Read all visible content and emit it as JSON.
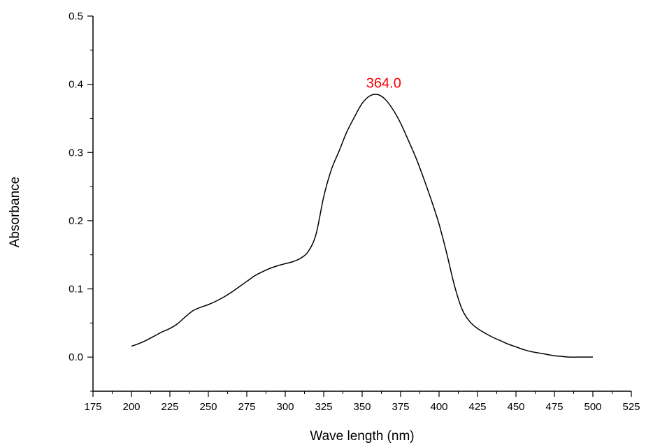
{
  "chart_data": {
    "type": "line",
    "title": "",
    "xlabel": "Wave length (nm)",
    "ylabel": "Absorbance",
    "xlim": [
      175,
      525
    ],
    "ylim": [
      -0.05,
      0.5
    ],
    "grid": false,
    "legend": "none",
    "x_ticks": [
      175,
      200,
      225,
      250,
      275,
      300,
      325,
      350,
      375,
      400,
      425,
      450,
      475,
      500,
      525
    ],
    "x_tick_labels": [
      "175",
      "200",
      "225",
      "250",
      "275",
      "300",
      "325",
      "350",
      "375",
      "400",
      "425",
      "450",
      "475",
      "500",
      "525"
    ],
    "y_ticks": [
      0.0,
      0.1,
      0.2,
      0.3,
      0.4,
      0.5
    ],
    "y_tick_labels": [
      "0.0",
      "0.1",
      "0.2",
      "0.3",
      "0.4",
      "0.5"
    ],
    "series": [
      {
        "color": "#000000",
        "x": [
          200,
          205,
          210,
          215,
          220,
          225,
          230,
          235,
          240,
          245,
          250,
          255,
          260,
          265,
          270,
          275,
          280,
          285,
          290,
          295,
          300,
          305,
          310,
          315,
          320,
          325,
          330,
          335,
          340,
          345,
          350,
          355,
          360,
          365,
          370,
          375,
          380,
          385,
          390,
          395,
          400,
          405,
          410,
          415,
          420,
          425,
          430,
          435,
          440,
          445,
          450,
          455,
          460,
          465,
          470,
          475,
          480,
          485,
          490,
          495,
          500
        ],
        "y": [
          0.016,
          0.02,
          0.025,
          0.031,
          0.037,
          0.042,
          0.049,
          0.059,
          0.068,
          0.073,
          0.077,
          0.082,
          0.088,
          0.095,
          0.103,
          0.111,
          0.119,
          0.125,
          0.13,
          0.134,
          0.137,
          0.14,
          0.145,
          0.155,
          0.18,
          0.235,
          0.275,
          0.302,
          0.33,
          0.352,
          0.372,
          0.383,
          0.385,
          0.378,
          0.363,
          0.343,
          0.318,
          0.292,
          0.262,
          0.23,
          0.195,
          0.152,
          0.105,
          0.07,
          0.052,
          0.042,
          0.035,
          0.029,
          0.024,
          0.019,
          0.015,
          0.011,
          0.008,
          0.006,
          0.004,
          0.002,
          0.001,
          0.0,
          0.0,
          0.0,
          0.0
        ]
      }
    ],
    "annotations": [
      {
        "text": "364.0",
        "x": 364,
        "y": 0.385,
        "color": "#ff0000"
      }
    ]
  }
}
